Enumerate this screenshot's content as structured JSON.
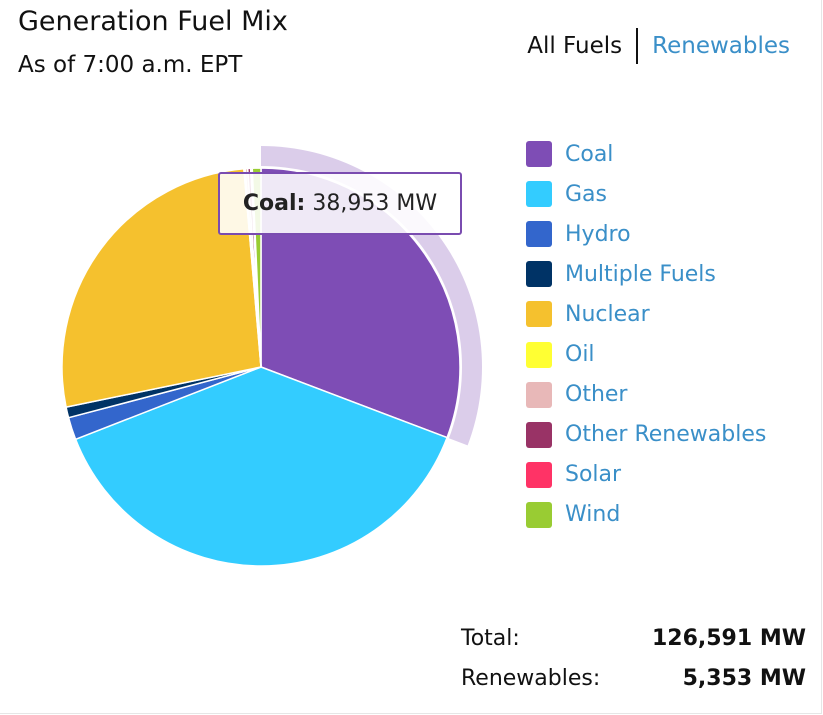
{
  "header": {
    "title": "Generation Fuel Mix",
    "subtitle": "As of 7:00 a.m. EPT"
  },
  "toggle": {
    "all_label": "All Fuels",
    "renewables_label": "Renewables"
  },
  "tooltip": {
    "name": "Coal:",
    "value": "38,953 MW"
  },
  "totals": {
    "total_label": "Total:",
    "total_value": "126,591 MW",
    "renewables_label": "Renewables:",
    "renewables_value": "5,353 MW"
  },
  "chart_data": {
    "type": "pie",
    "title": "Generation Fuel Mix",
    "unit": "MW",
    "total": 126591,
    "highlighted": "Coal",
    "slices": [
      {
        "name": "Coal",
        "value": 38953,
        "color": "#7e4db5"
      },
      {
        "name": "Gas",
        "value": 48500,
        "color": "#33ccff"
      },
      {
        "name": "Hydro",
        "value": 2300,
        "color": "#3366cc"
      },
      {
        "name": "Multiple Fuels",
        "value": 1100,
        "color": "#003366"
      },
      {
        "name": "Nuclear",
        "value": 34000,
        "color": "#f5c12e"
      },
      {
        "name": "Oil",
        "value": 140,
        "color": "#ffff33"
      },
      {
        "name": "Other",
        "value": 250,
        "color": "#e8b8b8"
      },
      {
        "name": "Other Renewables",
        "value": 300,
        "color": "#993366"
      },
      {
        "name": "Solar",
        "value": 160,
        "color": "#ff3366"
      },
      {
        "name": "Wind",
        "value": 888,
        "color": "#99cc33"
      }
    ],
    "legend_position": "right"
  }
}
